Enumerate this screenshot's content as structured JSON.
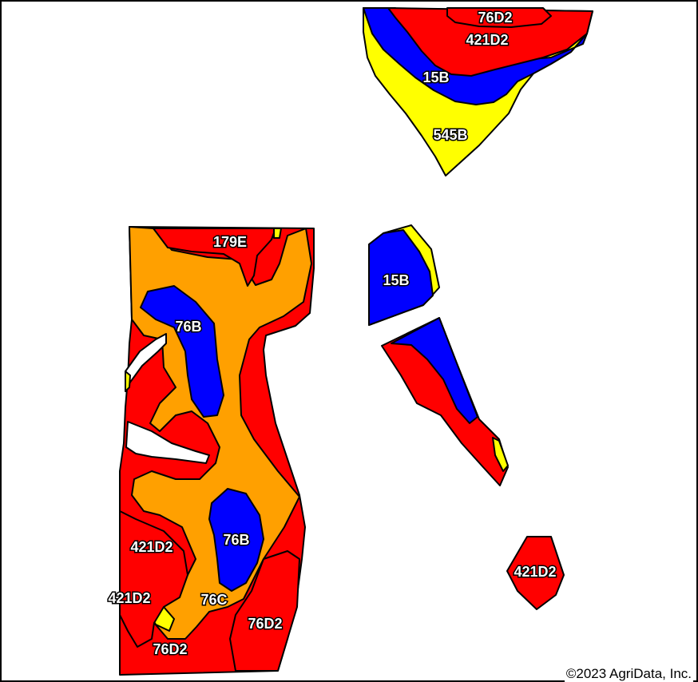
{
  "colors": {
    "red": "#ff0000",
    "orange": "#ffa000",
    "blue": "#0000ff",
    "yellow": "#ffff00",
    "border": "#000000",
    "background": "#ffffff"
  },
  "map_labels": [
    "76D2",
    "421D2",
    "15B",
    "545B",
    "179E",
    "15B",
    "76B",
    "76B",
    "421D2",
    "421D2",
    "76C",
    "76D2",
    "76D2",
    "421D2"
  ],
  "copyright": "©2023 AgriData, Inc."
}
